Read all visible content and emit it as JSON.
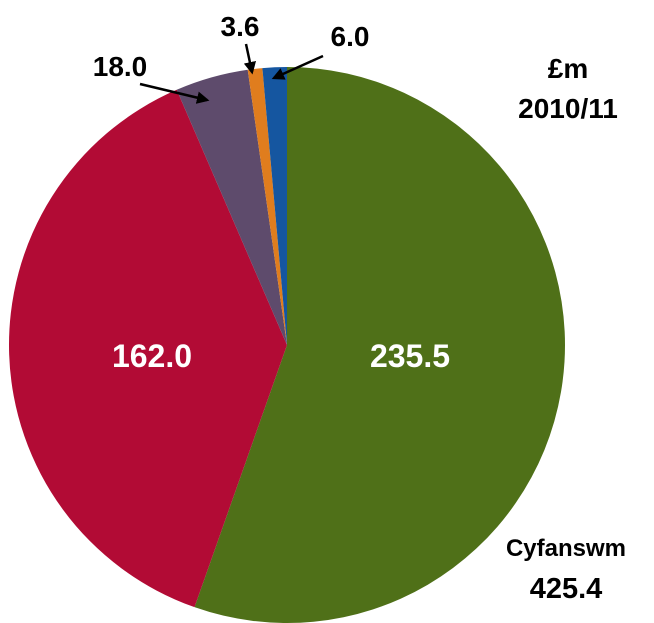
{
  "chart_data": {
    "type": "pie",
    "unit_label": "£m",
    "period_label": "2010/11",
    "total_label": "Cyfanswm",
    "total_value": "425.4",
    "slices": [
      {
        "label": "235.5",
        "value": 235.5,
        "color": "#4f7018"
      },
      {
        "label": "162.0",
        "value": 162.0,
        "color": "#b20b35"
      },
      {
        "label": "18.0",
        "value": 18.0,
        "color": "#5e4b6c"
      },
      {
        "label": "3.6",
        "value": 3.6,
        "color": "#e07d1e"
      },
      {
        "label": "6.0",
        "value": 6.0,
        "color": "#1556a0"
      }
    ],
    "start": "12 o'clock",
    "direction": "clockwise",
    "legend": "none"
  }
}
